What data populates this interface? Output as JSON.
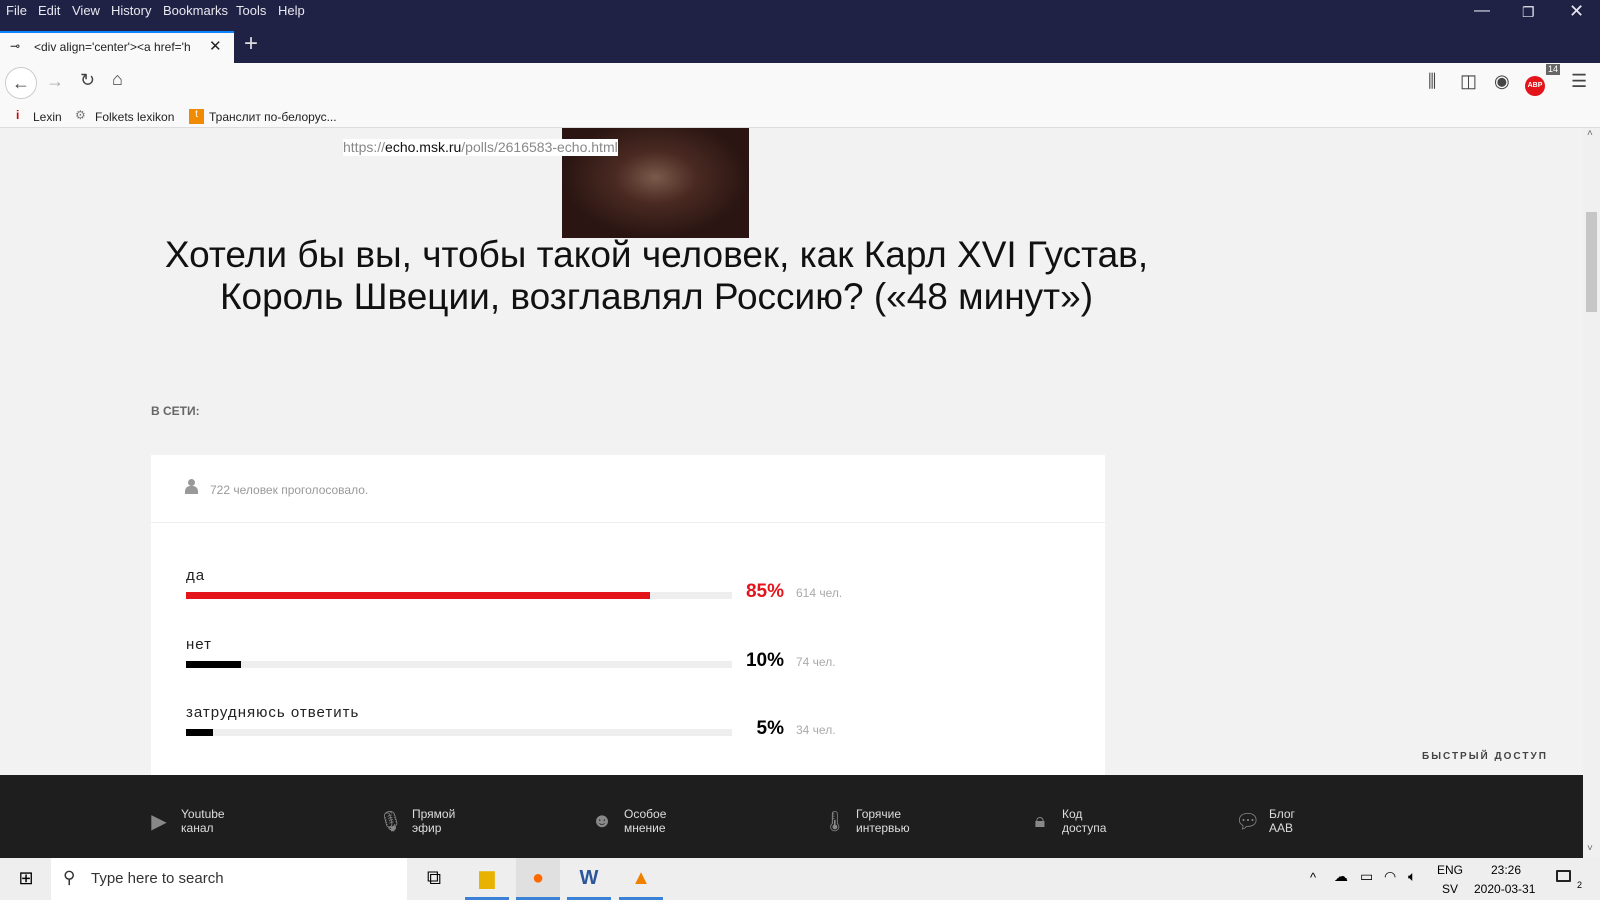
{
  "browser": {
    "menu": [
      "File",
      "Edit",
      "View",
      "History",
      "Bookmarks",
      "Tools",
      "Help"
    ],
    "tab_title": "<div align='center'><a href='h",
    "url_prefix": "https://",
    "url_domain": "echo.msk.ru",
    "url_path": "/polls/2616583-echo.html",
    "abp_badge": "14",
    "bookmarks": [
      "Lexin",
      "Folkets lexikon",
      "Транслит по-белорус..."
    ]
  },
  "page": {
    "title": "Хотели бы вы, чтобы такой человек, как Карл XVI Густав, Король Швеции, возглавлял Россию? («48 минут»)",
    "section_label": "В СЕТИ:",
    "votes_total": "722 человек проголосовало.",
    "options": [
      {
        "label": "да",
        "percent": "85%",
        "value": 85,
        "count": "614 чел.",
        "color": "#e3151a"
      },
      {
        "label": "нет",
        "percent": "10%",
        "value": 10,
        "count": "74 чел.",
        "color": "#000000"
      },
      {
        "label": "затрудняюсь ответить",
        "percent": "5%",
        "value": 5,
        "count": "34 чел.",
        "color": "#000000"
      }
    ],
    "quick_access": "БЫСТРЫЙ ДОСТУП"
  },
  "footer": [
    {
      "line1": "Youtube",
      "line2": "канал",
      "icon": "youtube-icon"
    },
    {
      "line1": "Прямой",
      "line2": "эфир",
      "icon": "microphone-icon"
    },
    {
      "line1": "Особое",
      "line2": "мнение",
      "icon": "head-icon"
    },
    {
      "line1": "Горячие",
      "line2": "интервью",
      "icon": "thermometer-icon"
    },
    {
      "line1": "Код",
      "line2": "доступа",
      "icon": "lock-icon"
    },
    {
      "line1": "Блог",
      "line2": "AAB",
      "icon": "chat-icon"
    }
  ],
  "taskbar": {
    "search_placeholder": "Type here to search",
    "lang1": "ENG",
    "lang2": "SV",
    "time": "23:26",
    "date": "2020-03-31",
    "notif": "2"
  }
}
